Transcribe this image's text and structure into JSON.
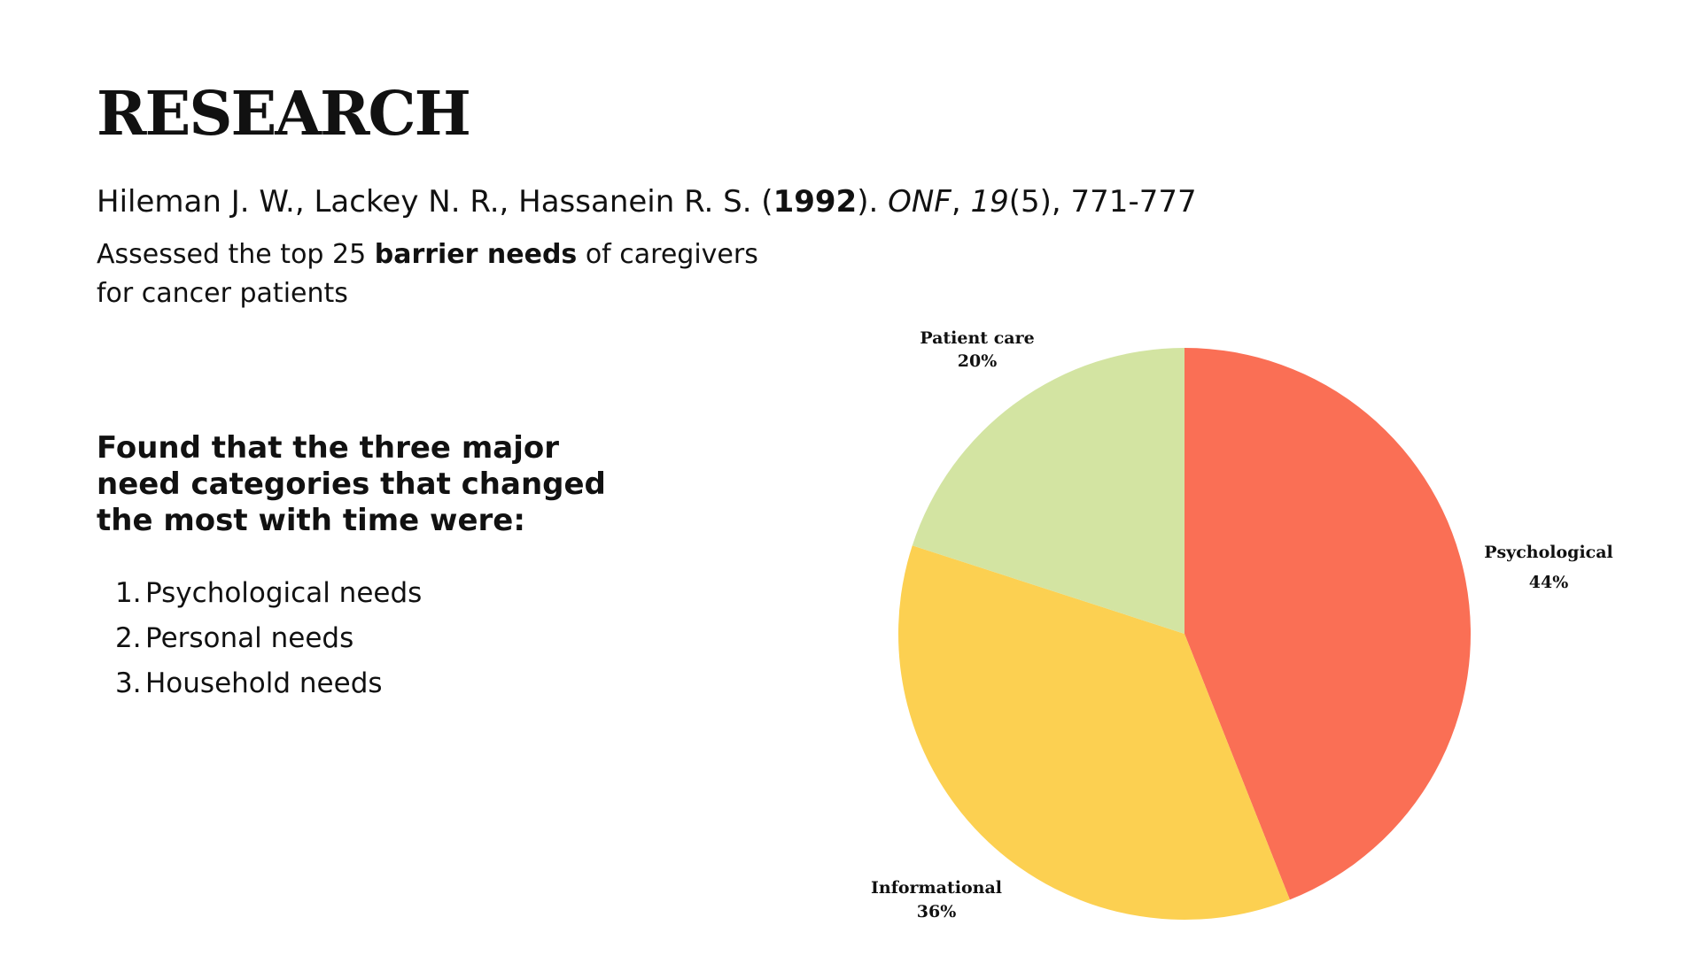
{
  "slide": {
    "title": "RESEARCH",
    "citation": {
      "authors": "Hileman J. W., Lackey N. R., Hassanein R. S. (",
      "year": "1992",
      "after_year": "). ",
      "journal": "ONF",
      "comma": ", ",
      "volume": "19",
      "rest": "(5), 771-777"
    },
    "summary": {
      "pre": "Assessed the top 25 ",
      "bold": "barrier needs",
      "post_line1": " of caregivers",
      "line2": "for cancer patients"
    },
    "finding": {
      "line1": "Found that the three major",
      "line2": "need categories that changed",
      "line3": "the most with time were:"
    },
    "needs_list": [
      {
        "num": "1.",
        "label": "Psychological needs"
      },
      {
        "num": "2.",
        "label": "Personal needs"
      },
      {
        "num": "3.",
        "label": "Household needs"
      }
    ]
  },
  "chart_data": {
    "type": "pie",
    "start_angle": "12 o'clock, clockwise",
    "slices": [
      {
        "label": "Psychological",
        "value": 44,
        "value_label": "44%",
        "color": "#FA6F55"
      },
      {
        "label": "Informational",
        "value": 36,
        "value_label": "36%",
        "color": "#FCD051"
      },
      {
        "label": "Patient  care",
        "value": 20,
        "value_label": "20%",
        "color": "#D3E4A2"
      }
    ]
  }
}
